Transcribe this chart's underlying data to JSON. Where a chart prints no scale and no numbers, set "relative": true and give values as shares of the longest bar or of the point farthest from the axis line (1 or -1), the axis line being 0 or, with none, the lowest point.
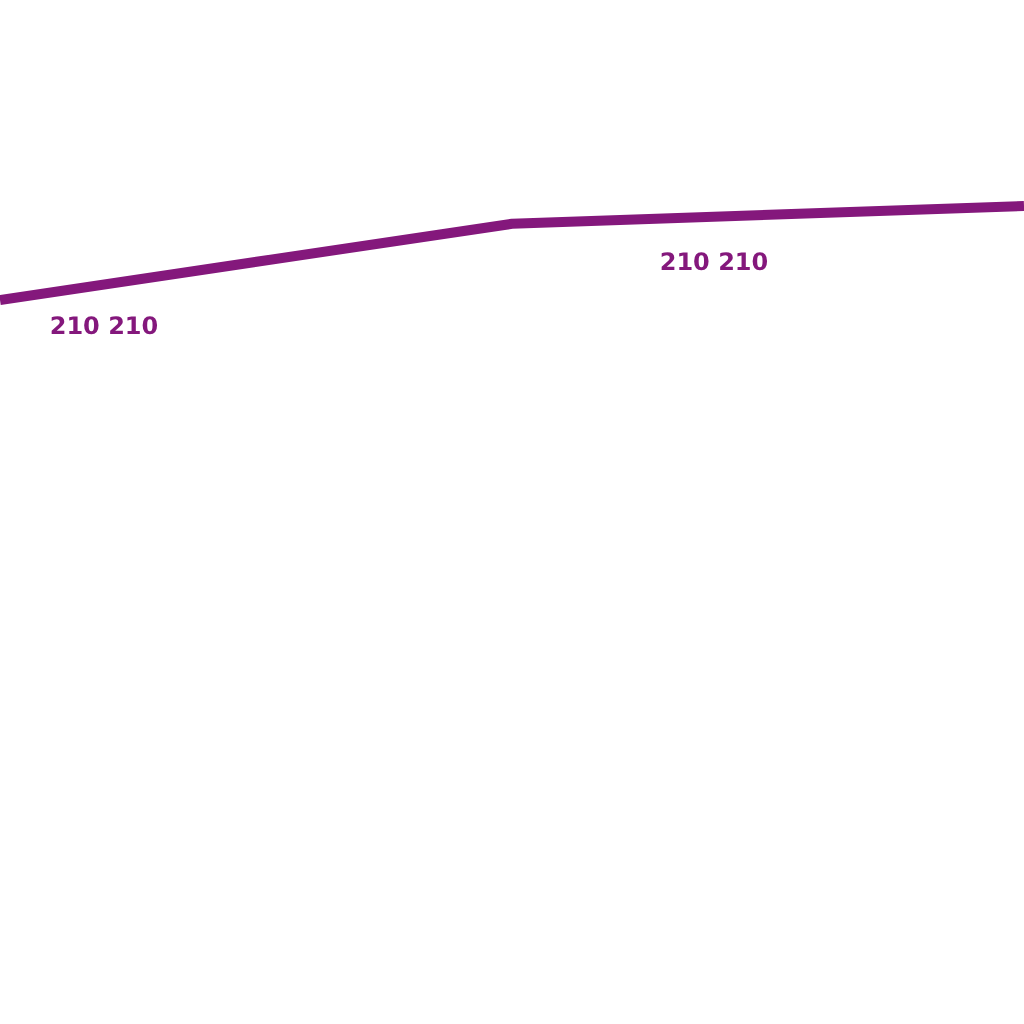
{
  "chart_data": {
    "type": "line",
    "relative": true,
    "categories": [
      null,
      null,
      null
    ],
    "series": [
      {
        "color": "#84187c",
        "values": [
          0,
          0.81,
          1
        ]
      }
    ],
    "annotations": [
      "210  210",
      "210  210"
    ],
    "legend": false,
    "marker": "none",
    "line_style": "solid"
  }
}
